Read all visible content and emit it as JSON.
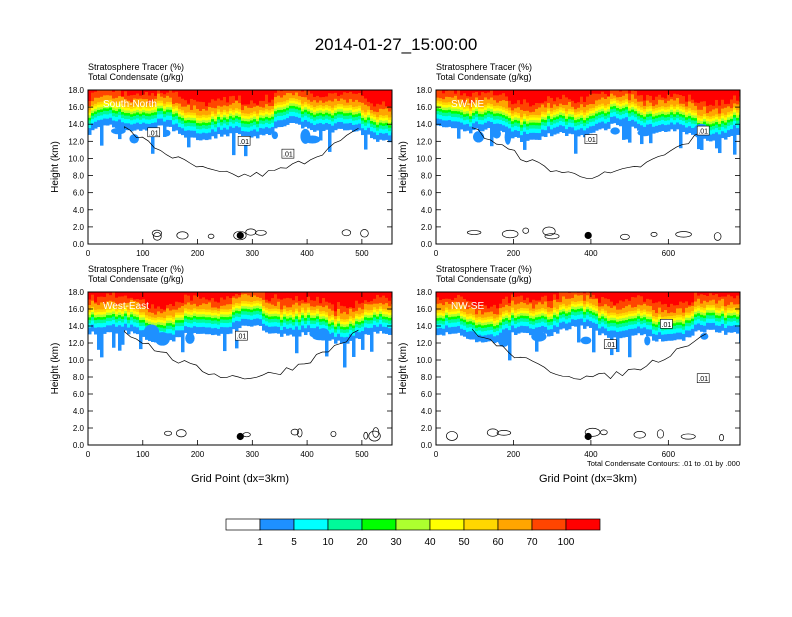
{
  "title": "2014-01-27_15:00:00",
  "palette": [
    "#ffffff",
    "#1e90ff",
    "#00ffff",
    "#00fa9a",
    "#00ff00",
    "#adff2f",
    "#ffff00",
    "#ffd700",
    "#ffa500",
    "#ff4500",
    "#ff0000"
  ],
  "chart_data": [
    {
      "type": "heatmap",
      "name": "South-North",
      "title_lines": [
        "Stratosphere Tracer   (%)",
        "Total Condensate   (g/kg)"
      ],
      "ylabel": "Height (km)",
      "xlabel": "",
      "xlim": [
        0,
        555
      ],
      "ylim": [
        0,
        18
      ],
      "xticks": [
        "0",
        "100",
        "200",
        "300",
        "400",
        "500"
      ],
      "xtick_values": [
        0,
        100,
        200,
        300,
        400,
        500
      ],
      "yticks": [
        "0.0",
        "2.0",
        "4.0",
        "6.0",
        "8.0",
        "10.0",
        "12.0",
        "14.0",
        "16.0",
        "18.0"
      ],
      "contour_labels": [
        {
          "text": ".01",
          "x": 120,
          "y": 13.0
        },
        {
          "text": ".01",
          "x": 285,
          "y": 12.0
        },
        {
          "text": ".01",
          "x": 365,
          "y": 10.5
        }
      ],
      "marker": {
        "x": 278,
        "y": 1.0
      },
      "footnote": ""
    },
    {
      "type": "heatmap",
      "name": "SW-NE",
      "title_lines": [
        "Stratosphere Tracer   (%)",
        "Total Condensate   (g/kg)"
      ],
      "ylabel": "Height (km)",
      "xlabel": "",
      "xlim": [
        0,
        785
      ],
      "ylim": [
        0,
        18
      ],
      "xticks": [
        "0",
        "200",
        "400",
        "600"
      ],
      "xtick_values": [
        0,
        200,
        400,
        600
      ],
      "yticks": [
        "0.0",
        "2.0",
        "4.0",
        "6.0",
        "8.0",
        "10.0",
        "12.0",
        "14.0",
        "16.0",
        "18.0"
      ],
      "contour_labels": [
        {
          "text": ".01",
          "x": 400,
          "y": 12.2
        },
        {
          "text": ".01",
          "x": 690,
          "y": 13.2
        }
      ],
      "marker": {
        "x": 393,
        "y": 1.0
      },
      "footnote": ""
    },
    {
      "type": "heatmap",
      "name": "West-East",
      "title_lines": [
        "Stratosphere Tracer   (%)",
        "Total Condensate   (g/kg)"
      ],
      "ylabel": "Height (km)",
      "xlabel": "Grid Point (dx=3km)",
      "xlim": [
        0,
        555
      ],
      "ylim": [
        0,
        18
      ],
      "xticks": [
        "0",
        "100",
        "200",
        "300",
        "400",
        "500"
      ],
      "xtick_values": [
        0,
        100,
        200,
        300,
        400,
        500
      ],
      "yticks": [
        "0.0",
        "2.0",
        "4.0",
        "6.0",
        "8.0",
        "10.0",
        "12.0",
        "14.0",
        "16.0",
        "18.0"
      ],
      "contour_labels": [
        {
          "text": ".01",
          "x": 280,
          "y": 12.8
        }
      ],
      "marker": {
        "x": 278,
        "y": 1.0
      },
      "footnote": ""
    },
    {
      "type": "heatmap",
      "name": "NW-SE",
      "title_lines": [
        "Stratosphere Tracer   (%)",
        "Total Condensate   (g/kg)"
      ],
      "ylabel": "Height (km)",
      "xlabel": "Grid Point (dx=3km)",
      "xlim": [
        0,
        785
      ],
      "ylim": [
        0,
        18
      ],
      "xticks": [
        "0",
        "200",
        "400",
        "600"
      ],
      "xtick_values": [
        0,
        200,
        400,
        600
      ],
      "yticks": [
        "0.0",
        "2.0",
        "4.0",
        "6.0",
        "8.0",
        "10.0",
        "12.0",
        "14.0",
        "16.0",
        "18.0"
      ],
      "contour_labels": [
        {
          "text": ".01",
          "x": 595,
          "y": 14.2
        },
        {
          "text": ".01",
          "x": 450,
          "y": 11.8
        },
        {
          "text": ".01",
          "x": 690,
          "y": 7.8
        }
      ],
      "marker": {
        "x": 393,
        "y": 1.0
      },
      "footnote": "Total Condensate Contours: .01 to .01 by .000"
    }
  ],
  "legend": {
    "labels": [
      "1",
      "5",
      "10",
      "20",
      "30",
      "40",
      "50",
      "60",
      "70",
      "100"
    ]
  }
}
